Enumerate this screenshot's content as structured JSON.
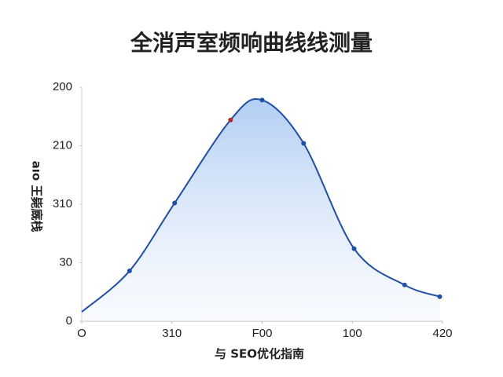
{
  "chart_data": {
    "type": "line",
    "title": "全消声室频响曲线线测量",
    "x_label": "与 SEO优化指南",
    "y_label": "aıo 王毙廐栈",
    "x": [
      0,
      53,
      103,
      165,
      200,
      246,
      302,
      358,
      397
    ],
    "series": [
      {
        "color": "#1f4fa8",
        "values": [
          8,
          43,
          101,
          172,
          189,
          152,
          62,
          31,
          21
        ],
        "point_colors": [
          "#1f4fa8",
          "#1f4fa8",
          "#1f4fa8",
          "#b02a2a",
          "#1f4fa8",
          "#1f4fa8",
          "#1f4fa8",
          "#1f4fa8",
          "#1f4fa8"
        ]
      }
    ],
    "xlim": [
      0,
      400
    ],
    "xticks": [
      {
        "value": 0,
        "label": "O"
      },
      {
        "value": 100,
        "label": "310"
      },
      {
        "value": 200,
        "label": "F00"
      },
      {
        "value": 300,
        "label": "100"
      },
      {
        "value": 400,
        "label": "420"
      }
    ],
    "ylim": [
      0,
      200
    ],
    "yticks": [
      0,
      {
        "value": 50,
        "label": "30"
      },
      {
        "value": 100,
        "label": "310"
      },
      {
        "value": 150,
        "label": "210"
      },
      200
    ],
    "fill_under": true
  }
}
